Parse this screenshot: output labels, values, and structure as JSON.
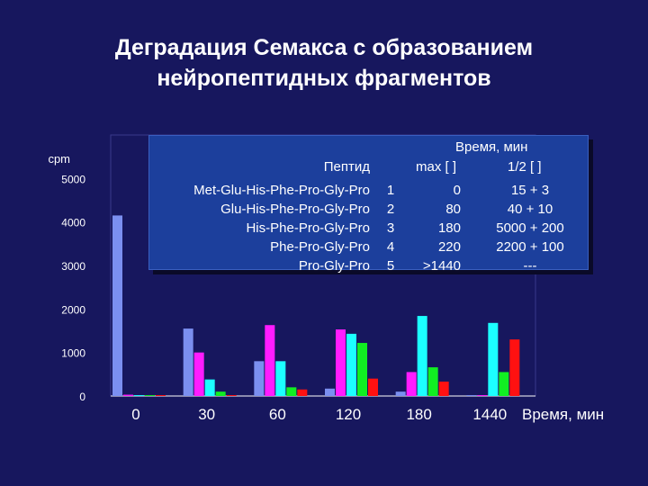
{
  "title": {
    "line1": "Деградация Семакса с образованием",
    "line2": "нейропептидных фрагментов"
  },
  "colors": {
    "background": "#17175e",
    "legend_bg": "#1c3f9c",
    "series": [
      "#7b8ff0",
      "#ff1cff",
      "#1cffff",
      "#11ee22",
      "#ff1111"
    ]
  },
  "legend_table": {
    "header_peptide": "Пептид",
    "header_time": "Время, мин",
    "header_max": "max [ ]",
    "header_half": "1/2 [ ]",
    "rows": [
      {
        "peptide": "Met-Glu-His-Phe-Pro-Gly-Pro",
        "num": "1",
        "max": "0",
        "half": "15 + 3"
      },
      {
        "peptide": "Glu-His-Phe-Pro-Gly-Pro",
        "num": "2",
        "max": "80",
        "half": "40 + 10"
      },
      {
        "peptide": "His-Phe-Pro-Gly-Pro",
        "num": "3",
        "max": "180",
        "half": "5000 + 200"
      },
      {
        "peptide": "Phe-Pro-Gly-Pro",
        "num": "4",
        "max": "220",
        "half": "2200 + 100"
      },
      {
        "peptide": "Pro-Gly-Pro",
        "num": "5",
        "max": ">1440",
        "half": "---"
      }
    ]
  },
  "chart_data": {
    "type": "bar",
    "title": "Деградация Семакса с образованием нейропептидных фрагментов",
    "ylabel": "cpm",
    "xlabel": "Время, мин",
    "ylim": [
      0,
      6000
    ],
    "yticks": [
      "0",
      "1000",
      "2000",
      "3000",
      "4000",
      "5000"
    ],
    "categories": [
      "0",
      "30",
      "60",
      "120",
      "180",
      "1440"
    ],
    "series": [
      {
        "name": "1",
        "color": "#7b8ff0",
        "values": [
          4150,
          1550,
          800,
          170,
          100,
          20
        ]
      },
      {
        "name": "2",
        "color": "#ff1cff",
        "values": [
          30,
          1000,
          1630,
          1530,
          550,
          20
        ]
      },
      {
        "name": "3",
        "color": "#1cffff",
        "values": [
          20,
          380,
          800,
          1430,
          1840,
          1680
        ]
      },
      {
        "name": "4",
        "color": "#11ee22",
        "values": [
          20,
          100,
          200,
          1220,
          660,
          550
        ]
      },
      {
        "name": "5",
        "color": "#ff1111",
        "values": [
          20,
          20,
          150,
          400,
          330,
          1300
        ]
      }
    ]
  }
}
